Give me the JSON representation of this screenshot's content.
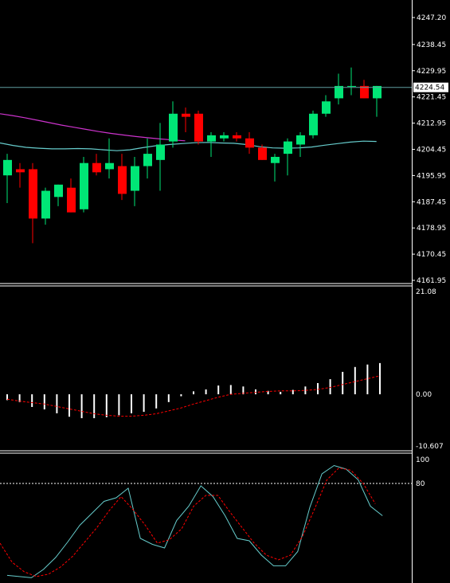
{
  "colors": {
    "background": "#000000",
    "axis_text": "#ffffff",
    "separator": "#ffffff",
    "bull": "#00e676",
    "bear": "#ff0000",
    "ma_slow": "#cc33cc",
    "ma_fast": "#66cccc",
    "price_line": "#5f9ea0",
    "macd_bar": "#ffffff",
    "macd_signal": "#ff0000",
    "stoch_main": "#66cccc",
    "stoch_signal": "#ff0000",
    "level_line": "#ffffff"
  },
  "chart_data": [
    {
      "type": "candlestick",
      "panel": "price",
      "ylim": [
        4161.95,
        4251.0
      ],
      "y_ticks": [
        "4247.20",
        "4238.45",
        "4229.95",
        "4221.45",
        "4212.95",
        "4204.45",
        "4195.95",
        "4187.45",
        "4178.95",
        "4170.45",
        "4161.95"
      ],
      "current_price": "4224.54",
      "candles": [
        {
          "o": 4196,
          "h": 4203,
          "l": 4187,
          "c": 4201
        },
        {
          "o": 4198,
          "h": 4200,
          "l": 4192,
          "c": 4197
        },
        {
          "o": 4198,
          "h": 4200,
          "l": 4174,
          "c": 4182
        },
        {
          "o": 4182,
          "h": 4192,
          "l": 4180,
          "c": 4191
        },
        {
          "o": 4189,
          "h": 4193,
          "l": 4186,
          "c": 4193
        },
        {
          "o": 4192,
          "h": 4195,
          "l": 4184,
          "c": 4184
        },
        {
          "o": 4185,
          "h": 4202,
          "l": 4184,
          "c": 4200
        },
        {
          "o": 4200,
          "h": 4203,
          "l": 4196,
          "c": 4197
        },
        {
          "o": 4198,
          "h": 4208,
          "l": 4195,
          "c": 4200
        },
        {
          "o": 4199,
          "h": 4203,
          "l": 4188,
          "c": 4190
        },
        {
          "o": 4191,
          "h": 4202,
          "l": 4186,
          "c": 4199
        },
        {
          "o": 4199,
          "h": 4208,
          "l": 4195,
          "c": 4203
        },
        {
          "o": 4201,
          "h": 4213,
          "l": 4191,
          "c": 4206
        },
        {
          "o": 4207,
          "h": 4220,
          "l": 4205,
          "c": 4216
        },
        {
          "o": 4216,
          "h": 4218,
          "l": 4210,
          "c": 4215
        },
        {
          "o": 4216,
          "h": 4217,
          "l": 4206,
          "c": 4207
        },
        {
          "o": 4207,
          "h": 4210,
          "l": 4202,
          "c": 4209
        },
        {
          "o": 4208,
          "h": 4210,
          "l": 4207,
          "c": 4209
        },
        {
          "o": 4209,
          "h": 4210,
          "l": 4207,
          "c": 4208
        },
        {
          "o": 4208,
          "h": 4210,
          "l": 4203,
          "c": 4205
        },
        {
          "o": 4205,
          "h": 4206,
          "l": 4201,
          "c": 4201
        },
        {
          "o": 4200,
          "h": 4203,
          "l": 4194,
          "c": 4202
        },
        {
          "o": 4203,
          "h": 4208,
          "l": 4196,
          "c": 4207
        },
        {
          "o": 4206,
          "h": 4210,
          "l": 4202,
          "c": 4209
        },
        {
          "o": 4209,
          "h": 4217,
          "l": 4208,
          "c": 4216
        },
        {
          "o": 4216,
          "h": 4222,
          "l": 4215,
          "c": 4220
        },
        {
          "o": 4221,
          "h": 4229,
          "l": 4219,
          "c": 4225
        },
        {
          "o": 4225,
          "h": 4231,
          "l": 4222,
          "c": 4225
        },
        {
          "o": 4225,
          "h": 4227,
          "l": 4221,
          "c": 4221
        },
        {
          "o": 4221,
          "h": 4225,
          "l": 4215,
          "c": 4225
        }
      ],
      "ma_slow": [
        4216.0,
        4215.4,
        4214.7,
        4213.9,
        4213.1,
        4212.3,
        4211.6,
        4210.9,
        4210.2,
        4209.6,
        4209.1,
        4208.6,
        4208.2,
        4207.8,
        4207.5,
        4207.2
      ],
      "ma_fast": [
        4206.5,
        4205.7,
        4205.1,
        4204.8,
        4204.6,
        4204.6,
        4204.7,
        4204.6,
        4204.3,
        4204.0,
        4204.3,
        4205.0,
        4205.6,
        4206.0,
        4206.3,
        4206.6,
        4206.7,
        4206.5,
        4206.4,
        4206.0,
        4205.3,
        4204.9,
        4204.8,
        4204.9,
        4205.2,
        4205.8,
        4206.3,
        4206.8,
        4207.1,
        4207.0
      ]
    },
    {
      "type": "bar",
      "panel": "macd",
      "ylim": [
        -10.607,
        21.08
      ],
      "y_ticks": [
        "21.08",
        "0.00",
        "-10.607"
      ],
      "values": [
        -1.2,
        -1.6,
        -2.6,
        -3.1,
        -3.9,
        -4.6,
        -4.9,
        -4.9,
        -4.7,
        -4.3,
        -3.9,
        -3.6,
        -2.9,
        -1.6,
        -0.4,
        0.6,
        1.0,
        1.8,
        1.9,
        1.6,
        1.0,
        0.7,
        0.5,
        0.9,
        1.6,
        2.3,
        3.1,
        4.6,
        5.6,
        6.1,
        6.4
      ],
      "signal": [
        -1.0,
        -1.4,
        -1.7,
        -2.0,
        -2.5,
        -3.0,
        -3.5,
        -4.0,
        -4.3,
        -4.5,
        -4.5,
        -4.3,
        -4.0,
        -3.4,
        -2.8,
        -2.0,
        -1.3,
        -0.6,
        0.0,
        0.2,
        0.4,
        0.6,
        0.7,
        0.7,
        0.8,
        1.0,
        1.4,
        2.0,
        2.6,
        3.2,
        3.8
      ]
    },
    {
      "type": "line",
      "panel": "stochastic",
      "ylim": [
        0,
        100
      ],
      "y_ticks": [
        "100",
        "80"
      ],
      "level": 80,
      "main": [
        3,
        2,
        1,
        8,
        18,
        31,
        45,
        55,
        65,
        68,
        76,
        34,
        29,
        26,
        49,
        61,
        78,
        69,
        53,
        34,
        32,
        20,
        11,
        11,
        23,
        60,
        88,
        95,
        92,
        83,
        61,
        53
      ],
      "signal": [
        30,
        14,
        6,
        2,
        4,
        10,
        19,
        31,
        43,
        57,
        69,
        58,
        45,
        30,
        33,
        42,
        61,
        70,
        70,
        56,
        43,
        30,
        20,
        16,
        20,
        36,
        59,
        83,
        93,
        91,
        80,
        63
      ]
    }
  ]
}
